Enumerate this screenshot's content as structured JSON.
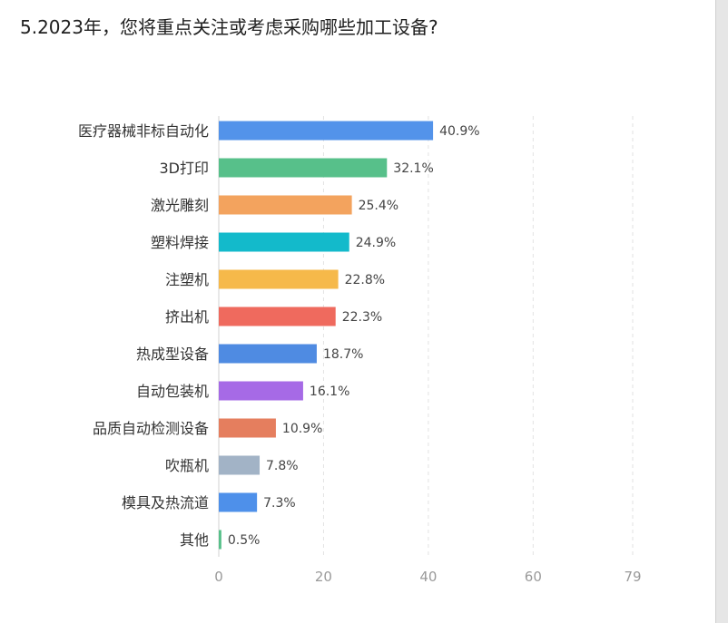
{
  "question": {
    "title": "5.2023年，您将重点关注或考虑采购哪些加工设备?"
  },
  "chart_data": {
    "type": "bar",
    "orientation": "horizontal",
    "title": "",
    "xlabel": "",
    "ylabel": "",
    "xlim": [
      0,
      79
    ],
    "xticks": [
      0,
      20,
      40,
      60,
      79
    ],
    "grid": true,
    "categories": [
      "医疗器械非标自动化",
      "3D打印",
      "激光雕刻",
      "塑料焊接",
      "注塑机",
      "挤出机",
      "热成型设备",
      "自动包装机",
      "品质自动检测设备",
      "吹瓶机",
      "模具及热流道",
      "其他"
    ],
    "values": [
      40.9,
      32.1,
      25.4,
      24.9,
      22.8,
      22.3,
      18.7,
      16.1,
      10.9,
      7.8,
      7.3,
      0.5
    ],
    "value_labels": [
      "40.9%",
      "32.1%",
      "25.4%",
      "24.9%",
      "22.8%",
      "22.3%",
      "18.7%",
      "16.1%",
      "10.9%",
      "7.8%",
      "7.3%",
      "0.5%"
    ],
    "colors": [
      "#5393ea",
      "#57c08a",
      "#f3a35e",
      "#13bacb",
      "#f6b94a",
      "#ef6a5e",
      "#4f8be2",
      "#a66ae6",
      "#e57e5e",
      "#a2b3c6",
      "#4e90ea",
      "#57c08a"
    ]
  }
}
